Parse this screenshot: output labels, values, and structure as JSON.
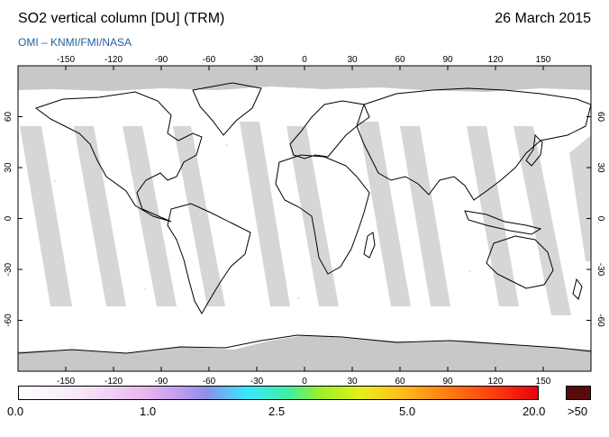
{
  "header": {
    "title": "SO2 vertical column [DU] (TRM)",
    "date": "26 March 2015",
    "subtitle": "OMI  –  KNMI/FMI/NASA"
  },
  "map": {
    "projection": "equirectangular",
    "lon_ticks": [
      "-150",
      "-120",
      "-90",
      "-60",
      "-30",
      "0",
      "30",
      "60",
      "90",
      "120",
      "150"
    ],
    "lat_ticks": [
      "60",
      "30",
      "0",
      "-30",
      "-60"
    ],
    "colors": {
      "no_data": "#c8c8c8",
      "gap": "#d4d4d4",
      "coast": "#000000",
      "background": "#ffffff"
    }
  },
  "colorbar": {
    "labels": [
      "0.0",
      "1.0",
      "2.5",
      "5.0",
      "20.0"
    ],
    "over_label": ">50",
    "over_color": "#5a0a0a"
  }
}
